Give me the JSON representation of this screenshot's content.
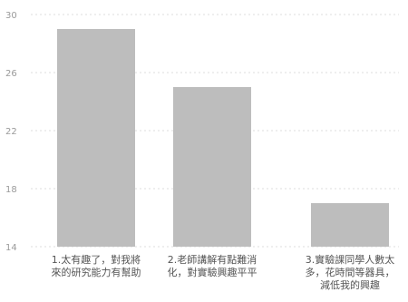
{
  "chart_data": {
    "type": "bar",
    "categories": [
      "1.太有趣了，對我將來的研究能力有幫助",
      "2.老師講解有點難消化，對實驗興趣平平",
      "3.實驗課同學人數太多，花時間等器具，減低我的興趣"
    ],
    "values": [
      29,
      25,
      17
    ],
    "ylim": [
      14,
      30
    ],
    "yticks": [
      "14",
      "18",
      "22",
      "26",
      "30"
    ],
    "grid": true,
    "bar_color": "#bdbdbd",
    "axis_color": "#9a9a9a"
  }
}
